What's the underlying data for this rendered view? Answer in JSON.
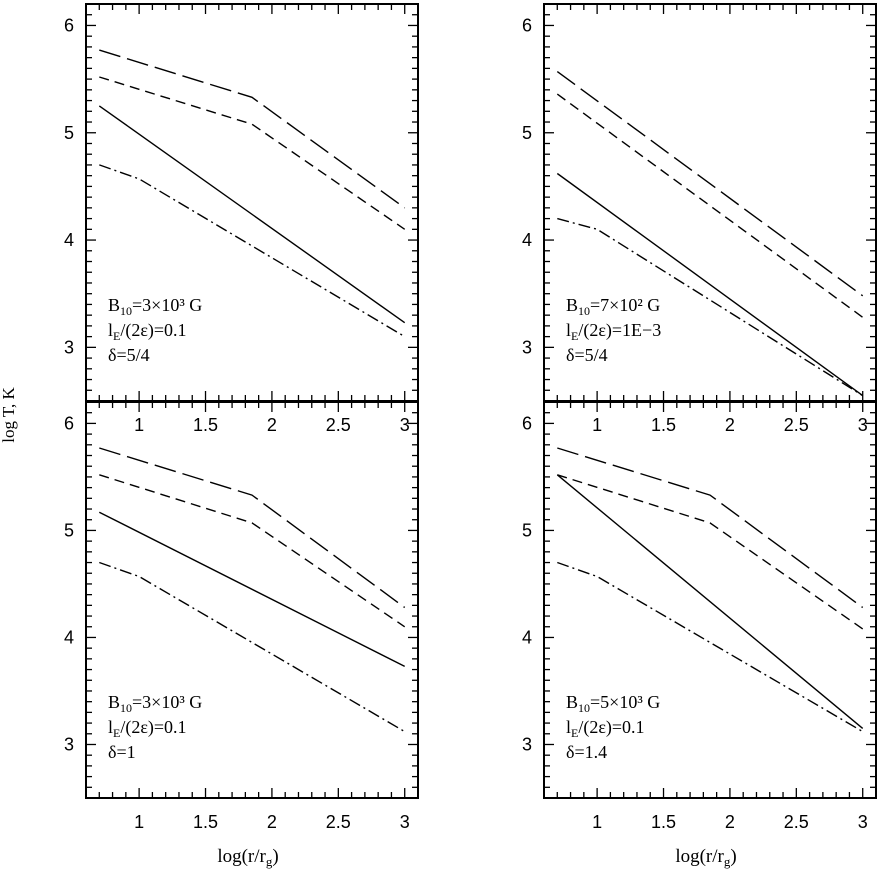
{
  "figure": {
    "ylabel": "log T, K",
    "xlabel": "log(r/r",
    "xlabel_sub": "g",
    "xlabel_close": ")"
  },
  "chart_data": [
    {
      "type": "line",
      "title": "",
      "xlabel": "log(r/r_g)",
      "ylabel": "log T, K",
      "xlim": [
        0.6,
        3.1
      ],
      "ylim": [
        2.5,
        6.2
      ],
      "xticks": [
        "1",
        "1.5",
        "2",
        "2.5",
        "3"
      ],
      "yticks": [
        "3",
        "4",
        "5",
        "6"
      ],
      "annotation": {
        "line1": "B",
        "sub1": "10",
        "rest1": "=3×10³ G",
        "line2": "l",
        "sub2": "E",
        "rest2": "/(2ε)=0.1",
        "line3": "δ=5/4"
      },
      "series": [
        {
          "style": "long-dash",
          "x": [
            0.7,
            1.85,
            3.0
          ],
          "y": [
            5.77,
            5.33,
            4.3
          ]
        },
        {
          "style": "short-dash",
          "x": [
            0.7,
            1.85,
            3.0
          ],
          "y": [
            5.52,
            5.08,
            4.1
          ]
        },
        {
          "style": "solid",
          "x": [
            0.7,
            3.0
          ],
          "y": [
            5.25,
            3.23
          ]
        },
        {
          "style": "dash-dot",
          "x": [
            0.7,
            1.0,
            3.0
          ],
          "y": [
            4.7,
            4.57,
            3.1
          ]
        }
      ]
    },
    {
      "type": "line",
      "title": "",
      "xlabel": "log(r/r_g)",
      "ylabel": "log T, K",
      "xlim": [
        0.6,
        3.1
      ],
      "ylim": [
        2.5,
        6.2
      ],
      "xticks": [
        "1",
        "1.5",
        "2",
        "2.5",
        "3"
      ],
      "yticks": [
        "3",
        "4",
        "5",
        "6"
      ],
      "annotation": {
        "line1": "B",
        "sub1": "10",
        "rest1": "=7×10² G",
        "line2": "l",
        "sub2": "E",
        "rest2": "/(2ε)=1E−3",
        "line3": "δ=5/4"
      },
      "series": [
        {
          "style": "long-dash",
          "x": [
            0.7,
            3.0
          ],
          "y": [
            5.57,
            3.48
          ]
        },
        {
          "style": "short-dash",
          "x": [
            0.7,
            3.0
          ],
          "y": [
            5.36,
            3.28
          ]
        },
        {
          "style": "solid",
          "x": [
            0.7,
            3.0
          ],
          "y": [
            4.62,
            2.55
          ]
        },
        {
          "style": "dash-dot",
          "x": [
            0.7,
            1.0,
            3.0
          ],
          "y": [
            4.2,
            4.1,
            2.55
          ]
        }
      ]
    },
    {
      "type": "line",
      "title": "",
      "xlabel": "log(r/r_g)",
      "ylabel": "log T, K",
      "xlim": [
        0.6,
        3.1
      ],
      "ylim": [
        2.5,
        6.2
      ],
      "xticks": [
        "1",
        "1.5",
        "2",
        "2.5",
        "3"
      ],
      "yticks": [
        "3",
        "4",
        "5",
        "6"
      ],
      "annotation": {
        "line1": "B",
        "sub1": "10",
        "rest1": "=3×10³ G",
        "line2": "l",
        "sub2": "E",
        "rest2": "/(2ε)=0.1",
        "line3": "δ=1"
      },
      "series": [
        {
          "style": "long-dash",
          "x": [
            0.7,
            1.85,
            3.0
          ],
          "y": [
            5.77,
            5.33,
            4.28
          ]
        },
        {
          "style": "short-dash",
          "x": [
            0.7,
            1.85,
            3.0
          ],
          "y": [
            5.52,
            5.07,
            4.1
          ]
        },
        {
          "style": "solid",
          "x": [
            0.7,
            3.0
          ],
          "y": [
            5.17,
            3.73
          ]
        },
        {
          "style": "dash-dot",
          "x": [
            0.7,
            1.0,
            3.0
          ],
          "y": [
            4.7,
            4.57,
            3.12
          ]
        }
      ]
    },
    {
      "type": "line",
      "title": "",
      "xlabel": "log(r/r_g)",
      "ylabel": "log T, K",
      "xlim": [
        0.6,
        3.1
      ],
      "ylim": [
        2.5,
        6.2
      ],
      "xticks": [
        "1",
        "1.5",
        "2",
        "2.5",
        "3"
      ],
      "yticks": [
        "3",
        "4",
        "5",
        "6"
      ],
      "annotation": {
        "line1": "B",
        "sub1": "10",
        "rest1": "=5×10³ G",
        "line2": "l",
        "sub2": "E",
        "rest2": "/(2ε)=0.1",
        "line3": "δ=1.4"
      },
      "series": [
        {
          "style": "long-dash",
          "x": [
            0.7,
            1.85,
            3.0
          ],
          "y": [
            5.77,
            5.33,
            4.28
          ]
        },
        {
          "style": "short-dash",
          "x": [
            0.7,
            1.85,
            3.0
          ],
          "y": [
            5.52,
            5.07,
            4.08
          ]
        },
        {
          "style": "solid",
          "x": [
            0.7,
            3.0
          ],
          "y": [
            5.52,
            3.15
          ]
        },
        {
          "style": "dash-dot",
          "x": [
            0.7,
            1.0,
            3.0
          ],
          "y": [
            4.7,
            4.57,
            3.12
          ]
        }
      ]
    }
  ]
}
